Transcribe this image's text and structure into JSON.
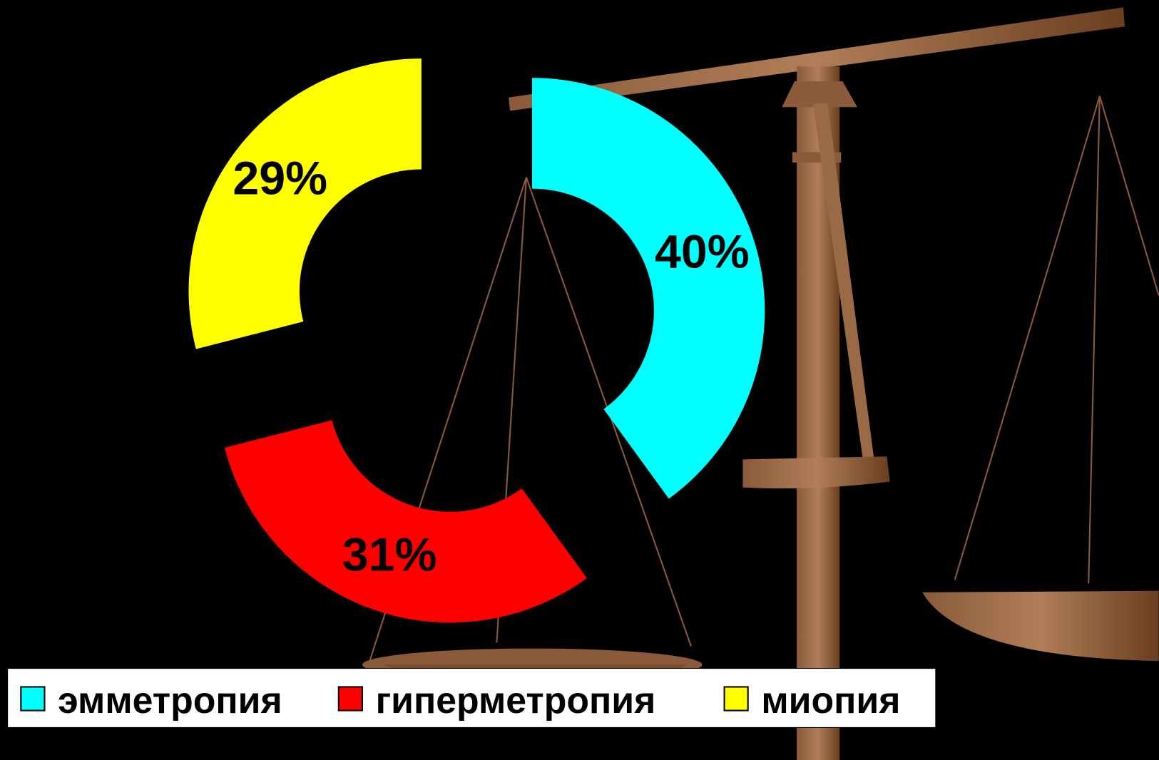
{
  "chart_data": {
    "type": "doughnut",
    "categories": [
      "эмметропия",
      "гиперметропия",
      "миопия"
    ],
    "values": [
      40,
      31,
      29
    ],
    "value_labels": [
      "40%",
      "31%",
      "29%"
    ],
    "colors": [
      "#00ffff",
      "#ff0000",
      "#ffff00"
    ],
    "legend": "bottom-left"
  }
}
